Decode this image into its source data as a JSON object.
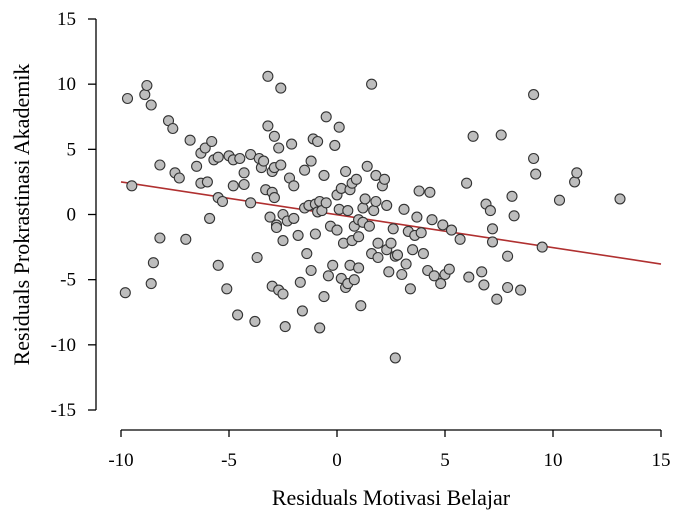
{
  "chart_data": {
    "type": "scatter",
    "title": "",
    "xlabel": "Residuals Motivasi Belajar",
    "ylabel": "Residuals Prokrastinasi Akademik",
    "xlim": [
      -10,
      15
    ],
    "ylim": [
      -15,
      15
    ],
    "xticks": [
      -10,
      -5,
      0,
      5,
      10,
      15
    ],
    "yticks": [
      -15,
      -10,
      -5,
      0,
      5,
      10,
      15
    ],
    "xtick_labels": [
      "-10",
      "-5",
      "0",
      "5",
      "10",
      "15"
    ],
    "ytick_labels": [
      "-15",
      "-10",
      "-5",
      "0",
      "5",
      "10",
      "15"
    ],
    "grid": false,
    "legend": "none",
    "colors": {
      "point_fill": "#bdbdbd",
      "point_edge": "#333333",
      "line": "#b03030",
      "axis": "#000000"
    },
    "trend_line": {
      "x": [
        -10,
        15
      ],
      "y": [
        2.5,
        -3.8
      ]
    },
    "points": [
      [
        -9.8,
        -6.0
      ],
      [
        -9.7,
        8.9
      ],
      [
        -9.5,
        2.2
      ],
      [
        -8.9,
        9.2
      ],
      [
        -8.8,
        9.9
      ],
      [
        -8.6,
        8.4
      ],
      [
        -8.6,
        -5.3
      ],
      [
        -8.5,
        -3.7
      ],
      [
        -8.2,
        -1.8
      ],
      [
        -8.2,
        3.8
      ],
      [
        -7.8,
        7.2
      ],
      [
        -7.6,
        6.6
      ],
      [
        -7.5,
        3.2
      ],
      [
        -7.3,
        2.8
      ],
      [
        -7.0,
        -1.9
      ],
      [
        -6.8,
        5.7
      ],
      [
        -6.5,
        3.7
      ],
      [
        -6.3,
        4.7
      ],
      [
        -6.3,
        2.4
      ],
      [
        -6.1,
        5.1
      ],
      [
        -6.0,
        2.5
      ],
      [
        -5.9,
        -0.3
      ],
      [
        -5.8,
        5.6
      ],
      [
        -5.7,
        4.2
      ],
      [
        -5.5,
        4.4
      ],
      [
        -5.5,
        1.3
      ],
      [
        -5.5,
        -3.9
      ],
      [
        -5.3,
        1.0
      ],
      [
        -5.1,
        -5.7
      ],
      [
        -5.0,
        4.5
      ],
      [
        -4.8,
        4.2
      ],
      [
        -4.8,
        2.2
      ],
      [
        -4.6,
        -7.7
      ],
      [
        -4.5,
        4.3
      ],
      [
        -4.3,
        3.2
      ],
      [
        -4.3,
        2.3
      ],
      [
        -4.0,
        4.6
      ],
      [
        -4.0,
        0.9
      ],
      [
        -3.8,
        -8.2
      ],
      [
        -3.7,
        -3.3
      ],
      [
        -3.6,
        4.3
      ],
      [
        -3.5,
        3.6
      ],
      [
        -3.4,
        4.1
      ],
      [
        -3.3,
        1.9
      ],
      [
        -3.2,
        10.6
      ],
      [
        -3.2,
        6.8
      ],
      [
        -3.1,
        -0.2
      ],
      [
        -3.0,
        3.3
      ],
      [
        -3.0,
        1.7
      ],
      [
        -3.0,
        -5.5
      ],
      [
        -2.9,
        6.0
      ],
      [
        -2.9,
        3.6
      ],
      [
        -2.9,
        1.3
      ],
      [
        -2.8,
        -0.8
      ],
      [
        -2.8,
        -1.0
      ],
      [
        -2.7,
        5.1
      ],
      [
        -2.7,
        -5.8
      ],
      [
        -2.6,
        9.7
      ],
      [
        -2.6,
        3.8
      ],
      [
        -2.5,
        0.0
      ],
      [
        -2.5,
        -2.0
      ],
      [
        -2.5,
        -6.1
      ],
      [
        -2.4,
        -8.6
      ],
      [
        -2.3,
        -0.5
      ],
      [
        -2.2,
        2.8
      ],
      [
        -2.1,
        5.4
      ],
      [
        -2.0,
        -0.3
      ],
      [
        -2.0,
        2.2
      ],
      [
        -1.8,
        -1.6
      ],
      [
        -1.7,
        -5.2
      ],
      [
        -1.6,
        -7.4
      ],
      [
        -1.5,
        0.5
      ],
      [
        -1.5,
        3.4
      ],
      [
        -1.4,
        -3.0
      ],
      [
        -1.3,
        0.7
      ],
      [
        -1.2,
        4.1
      ],
      [
        -1.2,
        -4.3
      ],
      [
        -1.1,
        5.8
      ],
      [
        -1.0,
        0.8
      ],
      [
        -1.0,
        -1.5
      ],
      [
        -0.9,
        5.6
      ],
      [
        -0.9,
        0.2
      ],
      [
        -0.8,
        -8.7
      ],
      [
        -0.8,
        1.0
      ],
      [
        -0.7,
        0.3
      ],
      [
        -0.6,
        -6.3
      ],
      [
        -0.6,
        3.0
      ],
      [
        -0.5,
        7.5
      ],
      [
        -0.5,
        0.9
      ],
      [
        -0.4,
        -4.7
      ],
      [
        -0.3,
        -0.9
      ],
      [
        -0.2,
        -3.9
      ],
      [
        -0.1,
        5.3
      ],
      [
        0.0,
        1.5
      ],
      [
        0.0,
        -1.2
      ],
      [
        0.1,
        6.7
      ],
      [
        0.1,
        0.4
      ],
      [
        0.2,
        2.0
      ],
      [
        0.2,
        -4.9
      ],
      [
        0.3,
        -2.2
      ],
      [
        0.4,
        -5.6
      ],
      [
        0.4,
        3.3
      ],
      [
        0.5,
        0.3
      ],
      [
        0.5,
        -5.3
      ],
      [
        0.6,
        1.9
      ],
      [
        0.6,
        -3.9
      ],
      [
        0.7,
        2.4
      ],
      [
        0.7,
        -2.0
      ],
      [
        0.8,
        -0.9
      ],
      [
        0.8,
        -5.0
      ],
      [
        0.9,
        2.7
      ],
      [
        1.0,
        -0.4
      ],
      [
        1.0,
        -1.7
      ],
      [
        1.0,
        -4.1
      ],
      [
        1.1,
        -7.0
      ],
      [
        1.2,
        -0.6
      ],
      [
        1.2,
        0.5
      ],
      [
        1.3,
        1.2
      ],
      [
        1.4,
        3.7
      ],
      [
        1.5,
        -0.9
      ],
      [
        1.6,
        -3.0
      ],
      [
        1.6,
        10.0
      ],
      [
        1.7,
        0.3
      ],
      [
        1.8,
        3.0
      ],
      [
        1.8,
        1.0
      ],
      [
        1.9,
        -2.2
      ],
      [
        1.9,
        -3.3
      ],
      [
        2.1,
        2.2
      ],
      [
        2.2,
        2.7
      ],
      [
        2.3,
        -2.7
      ],
      [
        2.3,
        0.7
      ],
      [
        2.4,
        -4.4
      ],
      [
        2.5,
        -2.2
      ],
      [
        2.6,
        -1.1
      ],
      [
        2.7,
        -3.2
      ],
      [
        2.7,
        -11.0
      ],
      [
        2.8,
        -3.1
      ],
      [
        3.0,
        -4.6
      ],
      [
        3.1,
        0.4
      ],
      [
        3.2,
        -3.8
      ],
      [
        3.3,
        -1.3
      ],
      [
        3.4,
        -5.7
      ],
      [
        3.5,
        -2.7
      ],
      [
        3.6,
        -1.6
      ],
      [
        3.7,
        -0.2
      ],
      [
        3.8,
        1.8
      ],
      [
        3.9,
        -1.4
      ],
      [
        4.0,
        -3.0
      ],
      [
        4.2,
        -4.3
      ],
      [
        4.3,
        1.7
      ],
      [
        4.4,
        -0.4
      ],
      [
        4.5,
        -4.7
      ],
      [
        4.8,
        -5.3
      ],
      [
        4.9,
        -0.8
      ],
      [
        5.0,
        -4.6
      ],
      [
        5.2,
        -4.2
      ],
      [
        5.3,
        -1.2
      ],
      [
        5.7,
        -1.9
      ],
      [
        6.0,
        2.4
      ],
      [
        6.1,
        -4.8
      ],
      [
        6.3,
        6.0
      ],
      [
        6.7,
        -4.4
      ],
      [
        6.8,
        -5.4
      ],
      [
        6.9,
        0.8
      ],
      [
        7.1,
        0.3
      ],
      [
        7.2,
        -1.1
      ],
      [
        7.2,
        -2.1
      ],
      [
        7.4,
        -6.5
      ],
      [
        7.6,
        6.1
      ],
      [
        7.9,
        -3.2
      ],
      [
        7.9,
        -5.6
      ],
      [
        8.1,
        1.4
      ],
      [
        8.2,
        -0.1
      ],
      [
        8.5,
        -5.8
      ],
      [
        9.1,
        9.2
      ],
      [
        9.1,
        4.3
      ],
      [
        9.2,
        3.1
      ],
      [
        9.5,
        -2.5
      ],
      [
        10.3,
        1.1
      ],
      [
        11.0,
        2.5
      ],
      [
        11.1,
        3.2
      ],
      [
        13.1,
        1.2
      ]
    ]
  }
}
